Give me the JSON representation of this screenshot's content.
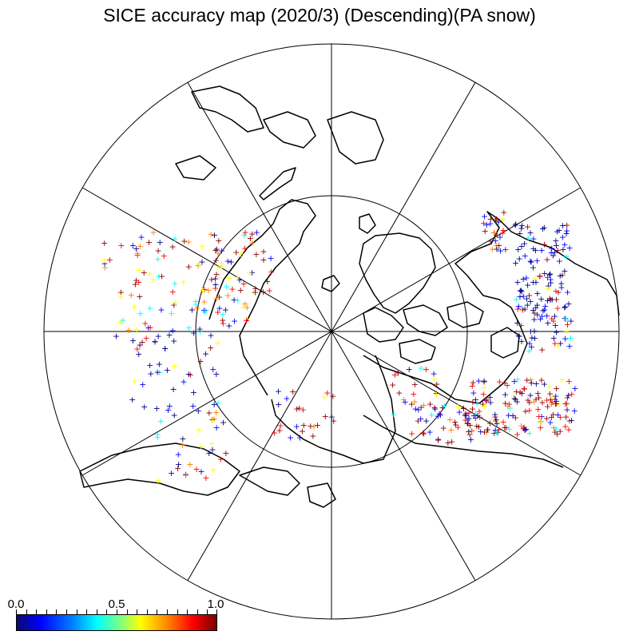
{
  "title": "SICE accuracy map (2020/3) (Descending)(PA snow)",
  "colorbar": {
    "labels": [
      "0.0",
      "0.5",
      "1.0"
    ],
    "min": 0.0,
    "max": 1.0,
    "colormap": "jet",
    "gradient_colors": [
      "#0a0a6e",
      "#0000ff",
      "#0080ff",
      "#00ffff",
      "#80ff80",
      "#ffff00",
      "#ff8000",
      "#ff0000",
      "#7a0000"
    ]
  },
  "map": {
    "projection": "north polar stereographic",
    "outline_color": "#000000",
    "graticule_color": "#000000",
    "latitude_circle": 60,
    "meridian_spacing_deg": 30,
    "marker": "+",
    "marker_colors": {
      "low": "#00008b",
      "mid_low": "#0000ff",
      "mid": "#00ffff",
      "mid_high": "#ffff00",
      "high_orange": "#ff8000",
      "high": "#ff0000",
      "very_high": "#8b0000"
    }
  }
}
